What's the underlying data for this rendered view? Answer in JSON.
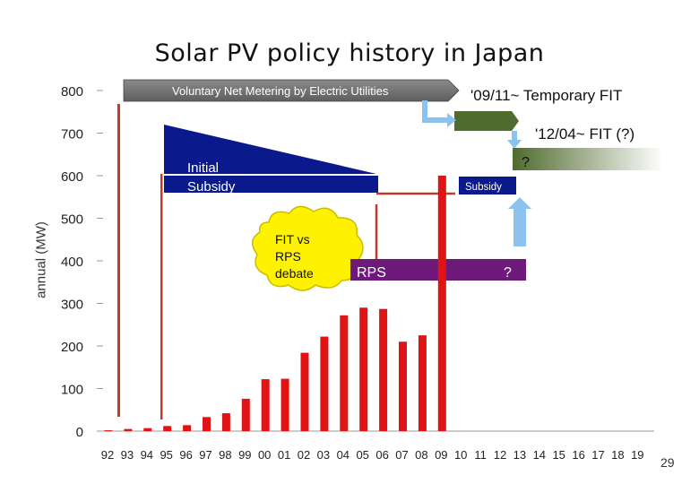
{
  "slide": {
    "title": "Solar PV policy history in Japan",
    "page_number": "29"
  },
  "colors": {
    "bar": "#e01414",
    "subsidy": "#0a1a8c",
    "rps": "#6e1a7a",
    "net_metering": "#7a7a7a",
    "fit_temp": "#4f6b2e",
    "arrow": "#8cc2ef",
    "bubble": "#fff200",
    "red_line": "#c23a2a"
  },
  "chart_data": {
    "type": "bar",
    "title": "Solar PV policy history in Japan",
    "xlabel": "",
    "ylabel": "annual (MW)",
    "ylim": [
      0,
      800
    ],
    "yticks": [
      "0",
      "100",
      "200",
      "300",
      "400",
      "500",
      "600",
      "700",
      "800"
    ],
    "categories": [
      "92",
      "93",
      "94",
      "95",
      "96",
      "97",
      "98",
      "99",
      "00",
      "01",
      "02",
      "03",
      "04",
      "05",
      "06",
      "07",
      "08",
      "09",
      "10",
      "11",
      "12",
      "13",
      "14",
      "15",
      "16",
      "17",
      "18",
      "19"
    ],
    "values": [
      2,
      5,
      7,
      12,
      14,
      33,
      42,
      76,
      122,
      123,
      184,
      222,
      272,
      290,
      287,
      210,
      225,
      600,
      null,
      null,
      null,
      null,
      null,
      null,
      null,
      null,
      null,
      null
    ],
    "annotations": {
      "net_metering": "Voluntary Net Metering by Electric Utilities",
      "temp_fit": "'09/11~ Temporary FIT",
      "fit_12": "'12/04~ FIT (?)",
      "fit_question": "?",
      "initial_subsidy_line1": "Initial",
      "initial_subsidy_line2": "Subsidy",
      "subsidy": "Subsidy",
      "debate": [
        "FIT vs",
        "RPS",
        "debate"
      ],
      "rps": "RPS",
      "rps_question": "?"
    }
  }
}
